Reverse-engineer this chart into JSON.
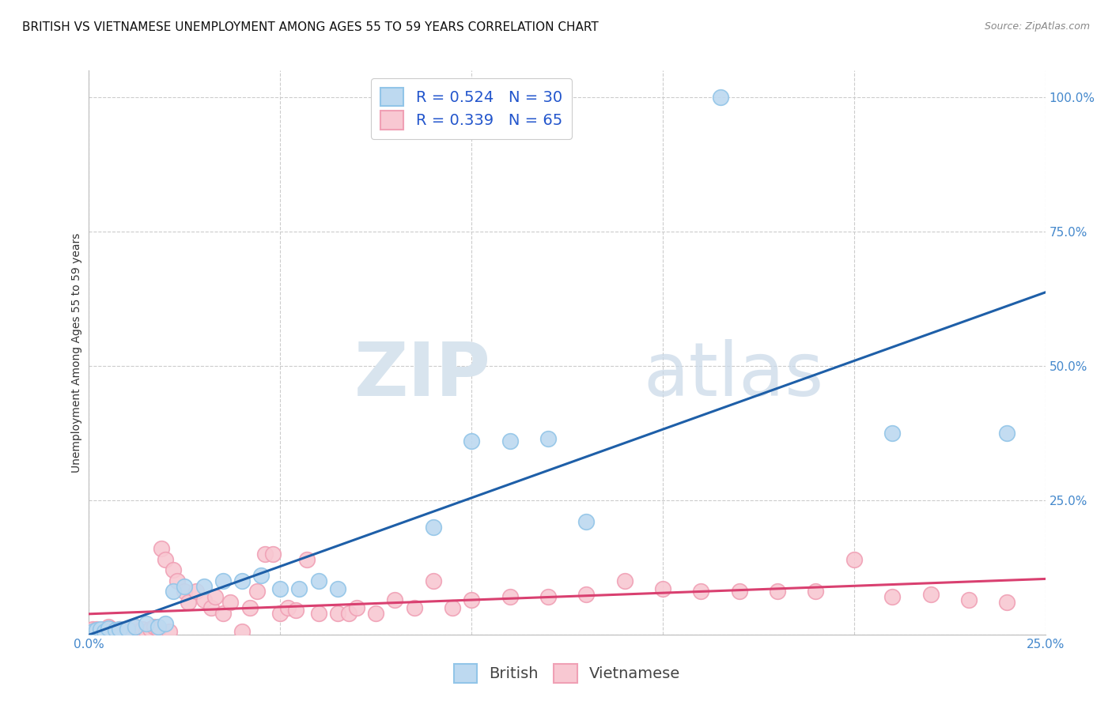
{
  "title": "BRITISH VS VIETNAMESE UNEMPLOYMENT AMONG AGES 55 TO 59 YEARS CORRELATION CHART",
  "source": "Source: ZipAtlas.com",
  "ylabel_label": "Unemployment Among Ages 55 to 59 years",
  "xlim": [
    0.0,
    0.25
  ],
  "ylim": [
    0.0,
    1.05
  ],
  "british_color": "#92C5E8",
  "british_fill": "#BDD9F0",
  "vietnamese_color": "#F0A0B5",
  "vietnamese_fill": "#F8C8D2",
  "trendline_british_color": "#1E5FA8",
  "trendline_vietnamese_color": "#D94070",
  "british_R": 0.524,
  "british_N": 30,
  "vietnamese_R": 0.339,
  "vietnamese_N": 65,
  "watermark_zip": "ZIP",
  "watermark_atlas": "atlas",
  "grid_color": "#CCCCCC",
  "background_color": "#FFFFFF",
  "title_fontsize": 11,
  "axis_label_fontsize": 10,
  "tick_fontsize": 11,
  "legend_fontsize": 14,
  "british_points": [
    [
      0.001,
      0.005
    ],
    [
      0.002,
      0.008
    ],
    [
      0.003,
      0.01
    ],
    [
      0.004,
      0.005
    ],
    [
      0.005,
      0.012
    ],
    [
      0.007,
      0.008
    ],
    [
      0.008,
      0.01
    ],
    [
      0.01,
      0.01
    ],
    [
      0.012,
      0.015
    ],
    [
      0.015,
      0.02
    ],
    [
      0.018,
      0.015
    ],
    [
      0.02,
      0.02
    ],
    [
      0.022,
      0.08
    ],
    [
      0.025,
      0.09
    ],
    [
      0.03,
      0.09
    ],
    [
      0.035,
      0.1
    ],
    [
      0.04,
      0.1
    ],
    [
      0.045,
      0.11
    ],
    [
      0.05,
      0.085
    ],
    [
      0.055,
      0.085
    ],
    [
      0.06,
      0.1
    ],
    [
      0.065,
      0.085
    ],
    [
      0.09,
      0.2
    ],
    [
      0.1,
      0.36
    ],
    [
      0.11,
      0.36
    ],
    [
      0.12,
      0.365
    ],
    [
      0.13,
      0.21
    ],
    [
      0.165,
      1.0
    ],
    [
      0.21,
      0.375
    ],
    [
      0.24,
      0.375
    ]
  ],
  "vietnamese_points": [
    [
      0.001,
      0.01
    ],
    [
      0.002,
      0.01
    ],
    [
      0.003,
      0.005
    ],
    [
      0.004,
      0.01
    ],
    [
      0.005,
      0.015
    ],
    [
      0.005,
      0.005
    ],
    [
      0.006,
      0.01
    ],
    [
      0.007,
      0.008
    ],
    [
      0.008,
      0.01
    ],
    [
      0.009,
      0.005
    ],
    [
      0.01,
      0.01
    ],
    [
      0.011,
      0.005
    ],
    [
      0.012,
      0.015
    ],
    [
      0.013,
      0.005
    ],
    [
      0.014,
      0.01
    ],
    [
      0.015,
      0.005
    ],
    [
      0.016,
      0.01
    ],
    [
      0.017,
      0.015
    ],
    [
      0.018,
      0.01
    ],
    [
      0.019,
      0.16
    ],
    [
      0.02,
      0.14
    ],
    [
      0.021,
      0.005
    ],
    [
      0.022,
      0.12
    ],
    [
      0.023,
      0.1
    ],
    [
      0.025,
      0.08
    ],
    [
      0.026,
      0.06
    ],
    [
      0.028,
      0.08
    ],
    [
      0.03,
      0.065
    ],
    [
      0.032,
      0.05
    ],
    [
      0.033,
      0.07
    ],
    [
      0.035,
      0.04
    ],
    [
      0.037,
      0.06
    ],
    [
      0.04,
      0.005
    ],
    [
      0.042,
      0.05
    ],
    [
      0.044,
      0.08
    ],
    [
      0.046,
      0.15
    ],
    [
      0.048,
      0.15
    ],
    [
      0.05,
      0.04
    ],
    [
      0.052,
      0.05
    ],
    [
      0.054,
      0.045
    ],
    [
      0.057,
      0.14
    ],
    [
      0.06,
      0.04
    ],
    [
      0.065,
      0.04
    ],
    [
      0.068,
      0.04
    ],
    [
      0.07,
      0.05
    ],
    [
      0.075,
      0.04
    ],
    [
      0.08,
      0.065
    ],
    [
      0.085,
      0.05
    ],
    [
      0.09,
      0.1
    ],
    [
      0.095,
      0.05
    ],
    [
      0.1,
      0.065
    ],
    [
      0.11,
      0.07
    ],
    [
      0.12,
      0.07
    ],
    [
      0.13,
      0.075
    ],
    [
      0.14,
      0.1
    ],
    [
      0.15,
      0.085
    ],
    [
      0.16,
      0.08
    ],
    [
      0.17,
      0.08
    ],
    [
      0.18,
      0.08
    ],
    [
      0.19,
      0.08
    ],
    [
      0.2,
      0.14
    ],
    [
      0.21,
      0.07
    ],
    [
      0.22,
      0.075
    ],
    [
      0.23,
      0.065
    ],
    [
      0.24,
      0.06
    ]
  ]
}
